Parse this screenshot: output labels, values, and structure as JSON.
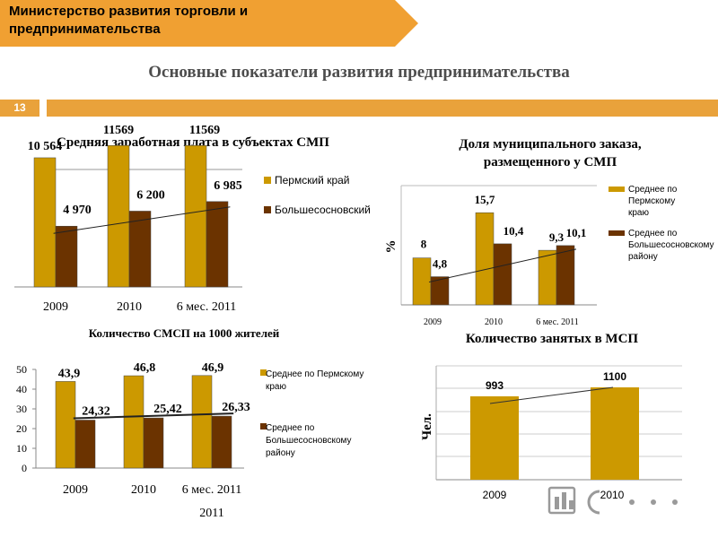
{
  "header": {
    "ministry": "Министерство развития торговли и предпринимательства",
    "title": "Основные показатели развития предпринимательства",
    "page_number": "13"
  },
  "colors": {
    "orange": "#e9a23b",
    "gold": "#cc9900",
    "brown": "#6b3300",
    "banner": "#f0a032"
  },
  "chart_data": [
    {
      "type": "bar",
      "title": "Средняя заработная плата в субъектах СМП",
      "categories": [
        "2009",
        "2010",
        "6 мес. 2011"
      ],
      "series": [
        {
          "name": "Пермский край",
          "values": [
            10564,
            11569,
            11569
          ],
          "labels": [
            "10 564",
            "11569",
            "11569"
          ]
        },
        {
          "name": "Большесосновский",
          "values": [
            4970,
            6200,
            6985
          ],
          "labels": [
            "4 970",
            "6 200",
            "6 985"
          ]
        }
      ],
      "trendline": "Большесосновский",
      "legend": "right"
    },
    {
      "type": "bar",
      "title": "Доля муниципального заказа, размещенного у СМП",
      "ylabel": "%",
      "categories": [
        "2009",
        "2010",
        "6 мес. 2011"
      ],
      "series": [
        {
          "name": "Среднее по Пермскому краю",
          "values": [
            8,
            15.7,
            9.3
          ],
          "labels": [
            "8",
            "15,7",
            "9,3"
          ]
        },
        {
          "name": "Среднее по Большесосновскому району",
          "values": [
            4.8,
            10.4,
            10.1
          ],
          "labels": [
            "4,8",
            "10,4",
            "10,1"
          ]
        }
      ],
      "trendline": "Среднее по Большесосновскому району",
      "legend": "right"
    },
    {
      "type": "bar",
      "title": "Количество СМСП на 1000 жителей",
      "categories": [
        "2009",
        "2010",
        "6 мес. 2011"
      ],
      "series": [
        {
          "name": "Среднее по Пермскому краю",
          "values": [
            43.9,
            46.8,
            46.9
          ],
          "labels": [
            "43,9",
            "46,8",
            "46,9"
          ]
        },
        {
          "name": "Среднее по Большесосновскому району",
          "values": [
            24.32,
            25.42,
            26.33
          ],
          "labels": [
            "24,32",
            "25,42",
            "26,33"
          ]
        }
      ],
      "yticks": [
        0,
        10,
        20,
        30,
        40,
        50
      ],
      "ylim": [
        0,
        50
      ],
      "trendline": "Среднее по Большесосновскому району",
      "legend": "right"
    },
    {
      "type": "bar",
      "title": "Количество занятых в МСП",
      "ylabel": "Чел.",
      "categories": [
        "2009",
        "2010"
      ],
      "series": [
        {
          "values": [
            993,
            1100
          ],
          "labels": [
            "993",
            "1100"
          ]
        }
      ],
      "trendline": "series",
      "grid": true
    }
  ]
}
